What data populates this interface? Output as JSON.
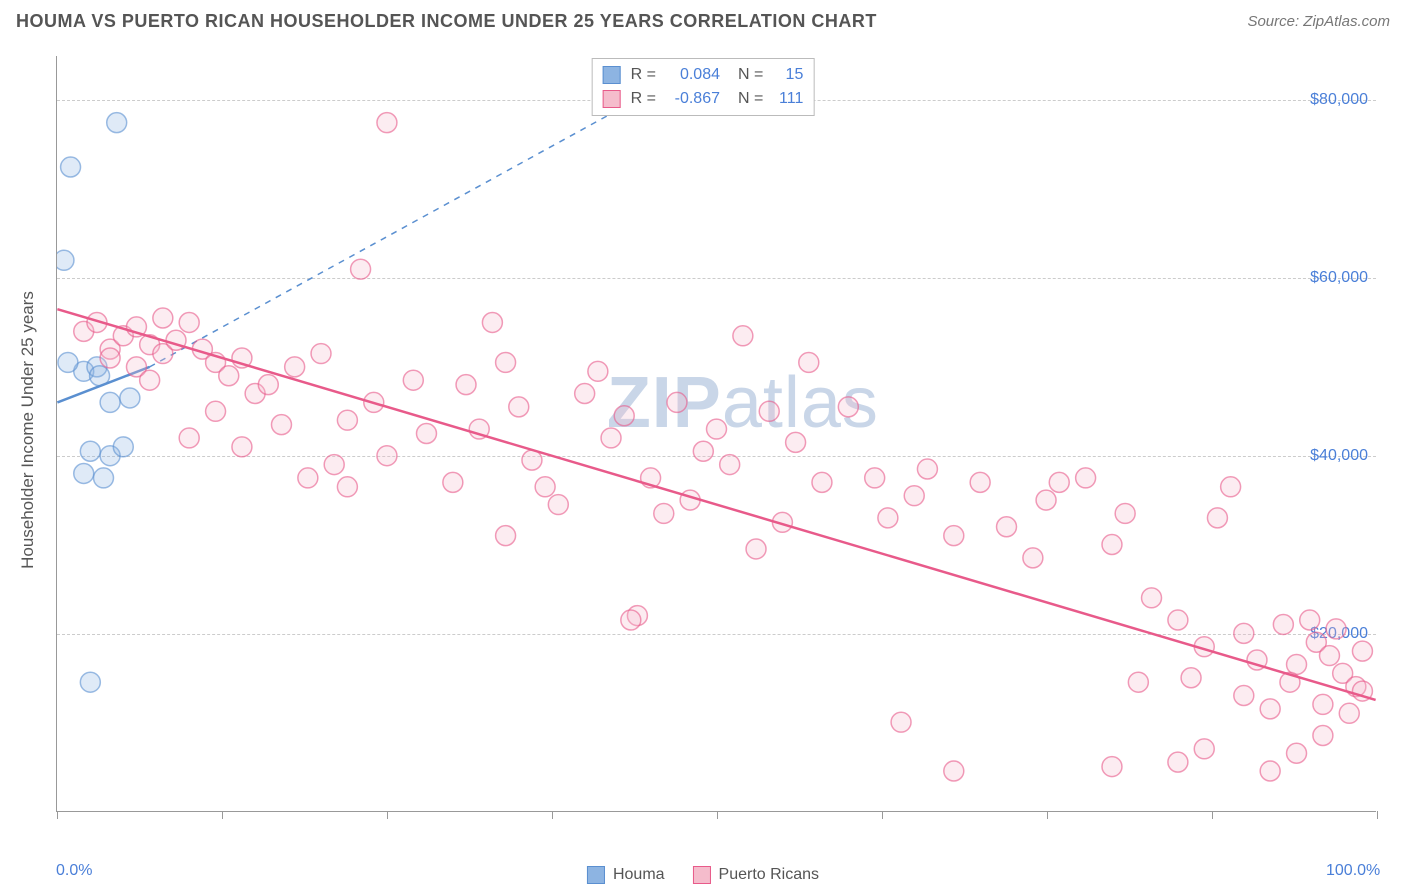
{
  "title": "HOUMA VS PUERTO RICAN HOUSEHOLDER INCOME UNDER 25 YEARS CORRELATION CHART",
  "source": "Source: ZipAtlas.com",
  "ylabel": "Householder Income Under 25 years",
  "watermark_bold": "ZIP",
  "watermark_light": "atlas",
  "chart": {
    "type": "scatter",
    "background_color": "#ffffff",
    "grid_color": "#cccccc",
    "axis_color": "#999999",
    "text_color": "#555555",
    "value_color": "#4a7fd8",
    "xlim": [
      0,
      100
    ],
    "ylim": [
      0,
      85000
    ],
    "xtick_positions": [
      0,
      12.5,
      25,
      37.5,
      50,
      62.5,
      75,
      87.5,
      100
    ],
    "xtick_labels": {
      "0": "0.0%",
      "100": "100.0%"
    },
    "ytick_positions": [
      20000,
      40000,
      60000,
      80000
    ],
    "ytick_labels": {
      "20000": "$20,000",
      "40000": "$40,000",
      "60000": "$60,000",
      "80000": "$80,000"
    },
    "marker_radius": 10,
    "marker_fill_opacity": 0.28,
    "marker_stroke_width": 1.5,
    "line_width": 2.5
  },
  "series": [
    {
      "key": "houma",
      "label": "Houma",
      "color": "#8db4e2",
      "stroke": "#5a8fd0",
      "R": "0.084",
      "N": "15",
      "trend": {
        "x1": 0,
        "y1": 46000,
        "x2": 7,
        "y2": 50000,
        "dash_ext": {
          "x2": 42,
          "y2": 78500
        }
      },
      "points": [
        [
          0.5,
          62000
        ],
        [
          1.0,
          72500
        ],
        [
          4.5,
          77500
        ],
        [
          2.0,
          49500
        ],
        [
          3.0,
          50000
        ],
        [
          4.0,
          46000
        ],
        [
          5.5,
          46500
        ],
        [
          2.5,
          40500
        ],
        [
          4.0,
          40000
        ],
        [
          2.0,
          38000
        ],
        [
          3.5,
          37500
        ],
        [
          5.0,
          41000
        ],
        [
          2.5,
          14500
        ],
        [
          0.8,
          50500
        ],
        [
          3.2,
          49000
        ]
      ]
    },
    {
      "key": "puerto_ricans",
      "label": "Puerto Ricans",
      "color": "#f5bccc",
      "stroke": "#e85a8a",
      "R": "-0.867",
      "N": "111",
      "trend": {
        "x1": 0,
        "y1": 56500,
        "x2": 100,
        "y2": 12500
      },
      "points": [
        [
          2,
          54000
        ],
        [
          3,
          55000
        ],
        [
          4,
          52000
        ],
        [
          5,
          53500
        ],
        [
          6,
          54500
        ],
        [
          7,
          52500
        ],
        [
          8,
          55500
        ],
        [
          4,
          51000
        ],
        [
          6,
          50000
        ],
        [
          8,
          51500
        ],
        [
          9,
          53000
        ],
        [
          10,
          55000
        ],
        [
          11,
          52000
        ],
        [
          12,
          50500
        ],
        [
          7,
          48500
        ],
        [
          13,
          49000
        ],
        [
          14,
          51000
        ],
        [
          15,
          47000
        ],
        [
          12,
          45000
        ],
        [
          16,
          48000
        ],
        [
          18,
          50000
        ],
        [
          20,
          51500
        ],
        [
          10,
          42000
        ],
        [
          14,
          41000
        ],
        [
          17,
          43500
        ],
        [
          19,
          37500
        ],
        [
          21,
          39000
        ],
        [
          22,
          44000
        ],
        [
          24,
          46000
        ],
        [
          23,
          61000
        ],
        [
          25,
          77500
        ],
        [
          27,
          48500
        ],
        [
          22,
          36500
        ],
        [
          25,
          40000
        ],
        [
          28,
          42500
        ],
        [
          30,
          37000
        ],
        [
          31,
          48000
        ],
        [
          33,
          55000
        ],
        [
          34,
          50500
        ],
        [
          32,
          43000
        ],
        [
          35,
          45500
        ],
        [
          37,
          36500
        ],
        [
          38,
          34500
        ],
        [
          34,
          31000
        ],
        [
          36,
          39500
        ],
        [
          40,
          47000
        ],
        [
          42,
          42000
        ],
        [
          43,
          44500
        ],
        [
          41,
          49500
        ],
        [
          44,
          22000
        ],
        [
          45,
          37500
        ],
        [
          46,
          33500
        ],
        [
          48,
          35000
        ],
        [
          47,
          46000
        ],
        [
          49,
          40500
        ],
        [
          50,
          43000
        ],
        [
          51,
          39000
        ],
        [
          52,
          53500
        ],
        [
          54,
          45000
        ],
        [
          55,
          32500
        ],
        [
          53,
          29500
        ],
        [
          56,
          41500
        ],
        [
          58,
          37000
        ],
        [
          57,
          50500
        ],
        [
          60,
          45500
        ],
        [
          62,
          37500
        ],
        [
          63,
          33000
        ],
        [
          65,
          35500
        ],
        [
          66,
          38500
        ],
        [
          68,
          31000
        ],
        [
          70,
          37000
        ],
        [
          72,
          32000
        ],
        [
          74,
          28500
        ],
        [
          75,
          35000
        ],
        [
          78,
          37500
        ],
        [
          80,
          30000
        ],
        [
          81,
          33500
        ],
        [
          64,
          10000
        ],
        [
          83,
          24000
        ],
        [
          85,
          21500
        ],
        [
          86,
          15000
        ],
        [
          87,
          18500
        ],
        [
          88,
          33000
        ],
        [
          89,
          36500
        ],
        [
          90,
          13000
        ],
        [
          91,
          17000
        ],
        [
          92,
          11500
        ],
        [
          93,
          21000
        ],
        [
          93.5,
          14500
        ],
        [
          94,
          16500
        ],
        [
          95,
          21500
        ],
        [
          95.5,
          19000
        ],
        [
          96,
          12000
        ],
        [
          96.5,
          17500
        ],
        [
          97,
          20500
        ],
        [
          97.5,
          15500
        ],
        [
          98,
          11000
        ],
        [
          98.5,
          14000
        ],
        [
          99,
          18000
        ],
        [
          99,
          13500
        ],
        [
          92,
          4500
        ],
        [
          85,
          5500
        ],
        [
          80,
          5000
        ],
        [
          87,
          7000
        ],
        [
          94,
          6500
        ],
        [
          96,
          8500
        ],
        [
          82,
          14500
        ],
        [
          90,
          20000
        ],
        [
          43.5,
          21500
        ],
        [
          76,
          37000
        ],
        [
          68,
          4500
        ]
      ]
    }
  ],
  "legend_bottom": [
    {
      "label": "Houma",
      "series": "houma"
    },
    {
      "label": "Puerto Ricans",
      "series": "puerto_ricans"
    }
  ]
}
